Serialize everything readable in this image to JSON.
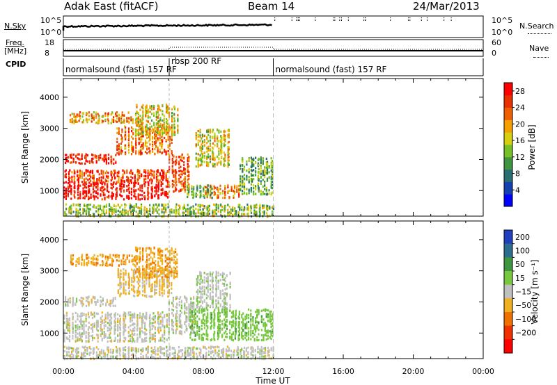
{
  "header": {
    "radar": "Adak East (fitACF)",
    "beam": "Beam 14",
    "date": "24/Mar/2013"
  },
  "labels": {
    "nsky": "N.Sky",
    "nsearch": "N.Search",
    "freq_line1": "Freq.",
    "freq_line2": "[MHz]",
    "nave": "Nave",
    "cpid": "CPID",
    "slant_range": "Slant Range [km]",
    "time_ut": "Time UT",
    "power_label": "Power [dB]",
    "velocity_label": "Velocity [m s⁻¹]"
  },
  "noise_panel": {
    "left_ticks": [
      "10^5",
      "10^0"
    ],
    "right_ticks": [
      "10^5",
      "10^0"
    ]
  },
  "freq_panel": {
    "left_ticks": [
      "18",
      "8"
    ],
    "right_ticks": [
      "60",
      "0"
    ]
  },
  "cpid_segments": [
    {
      "label": "normalsound (fast) 157 RF",
      "start_hour": 0,
      "end_hour": 6.05
    },
    {
      "label": "rbsp 200 RF",
      "start_hour": 6.05,
      "end_hour": 12.0
    },
    {
      "label": "normalsound (fast) 157 RF",
      "start_hour": 12.0,
      "end_hour": 24.0
    }
  ],
  "chart_data": [
    {
      "type": "heatmap",
      "name": "power",
      "xlabel": "Time UT",
      "ylabel": "Slant Range [km]",
      "xlim_hours": [
        0,
        24
      ],
      "ylim_km": [
        180,
        4600
      ],
      "y_ticks": [
        "1000",
        "2000",
        "3000",
        "4000"
      ],
      "colorbar": {
        "label": "Power [dB]",
        "ticks": [
          "4",
          "8",
          "12",
          "16",
          "20",
          "24",
          "28"
        ],
        "range": [
          0,
          30
        ],
        "colors": [
          "#0000ff",
          "#1540b0",
          "#2a6e72",
          "#3f9540",
          "#77c025",
          "#d6d010",
          "#f5a000",
          "#f06000",
          "#e83000",
          "#ff0000"
        ]
      },
      "echo_regions": [
        {
          "t0": 0.0,
          "t1": 6.0,
          "r0": 750,
          "r1": 1300,
          "value": 29
        },
        {
          "t0": 0.0,
          "t1": 6.0,
          "r0": 1300,
          "r1": 1700,
          "value": 25
        },
        {
          "t0": 6.0,
          "t1": 7.2,
          "r0": 1000,
          "r1": 2200,
          "value": 24
        },
        {
          "t0": 0.0,
          "t1": 3.0,
          "r0": 1900,
          "r1": 2200,
          "value": 27
        },
        {
          "t0": 3.0,
          "t1": 6.2,
          "r0": 2200,
          "r1": 3100,
          "value": 22
        },
        {
          "t0": 0.3,
          "t1": 4.2,
          "r0": 3200,
          "r1": 3550,
          "value": 20
        },
        {
          "t0": 4.0,
          "t1": 6.5,
          "r0": 2800,
          "r1": 3800,
          "value": 17
        },
        {
          "t0": 7.5,
          "t1": 9.5,
          "r0": 1800,
          "r1": 3000,
          "value": 16
        },
        {
          "t0": 8.0,
          "t1": 10.0,
          "r0": 800,
          "r1": 1200,
          "value": 22
        },
        {
          "t0": 7.0,
          "t1": 8.5,
          "r0": 800,
          "r1": 1200,
          "value": 12
        },
        {
          "t0": 10.0,
          "t1": 12.0,
          "r0": 900,
          "r1": 2100,
          "value": 12
        },
        {
          "t0": 0.0,
          "t1": 12.0,
          "r0": 200,
          "r1": 600,
          "value": 14
        }
      ]
    },
    {
      "type": "heatmap",
      "name": "velocity",
      "xlabel": "Time UT",
      "ylabel": "Slant Range [km]",
      "xlim_hours": [
        0,
        24
      ],
      "ylim_km": [
        180,
        4600
      ],
      "x_ticks": [
        "00:00",
        "04:00",
        "08:00",
        "12:00",
        "16:00",
        "20:00",
        "00:00"
      ],
      "y_ticks": [
        "1000",
        "2000",
        "3000",
        "4000"
      ],
      "colorbar": {
        "label": "Velocity [m s⁻¹]",
        "ticks": [
          "200",
          "100",
          "50",
          "15",
          "-15",
          "-50",
          "-100",
          "-200"
        ],
        "colors": [
          "#2040c0",
          "#2d6e8f",
          "#3f9540",
          "#78c840",
          "#c0c0c0",
          "#f0b020",
          "#f07000",
          "#f03000",
          "#ff0000"
        ]
      },
      "echo_regions": [
        {
          "t0": 0.0,
          "t1": 6.0,
          "r0": 750,
          "r1": 1700,
          "value": 0
        },
        {
          "t0": 0.0,
          "t1": 3.0,
          "r0": 1900,
          "r1": 2200,
          "value": 0
        },
        {
          "t0": 3.0,
          "t1": 6.2,
          "r0": 2200,
          "r1": 3100,
          "value": -20
        },
        {
          "t0": 0.3,
          "t1": 4.2,
          "r0": 3200,
          "r1": 3550,
          "value": -40
        },
        {
          "t0": 4.0,
          "t1": 6.5,
          "r0": 2800,
          "r1": 3800,
          "value": -40
        },
        {
          "t0": 6.0,
          "t1": 7.5,
          "r0": 1000,
          "r1": 2200,
          "value": 0
        },
        {
          "t0": 7.5,
          "t1": 9.5,
          "r0": 1800,
          "r1": 3000,
          "value": 5
        },
        {
          "t0": 7.2,
          "t1": 12.0,
          "r0": 800,
          "r1": 1800,
          "value": 35
        },
        {
          "t0": 0.0,
          "t1": 12.0,
          "r0": 200,
          "r1": 600,
          "value": 0
        }
      ]
    }
  ]
}
